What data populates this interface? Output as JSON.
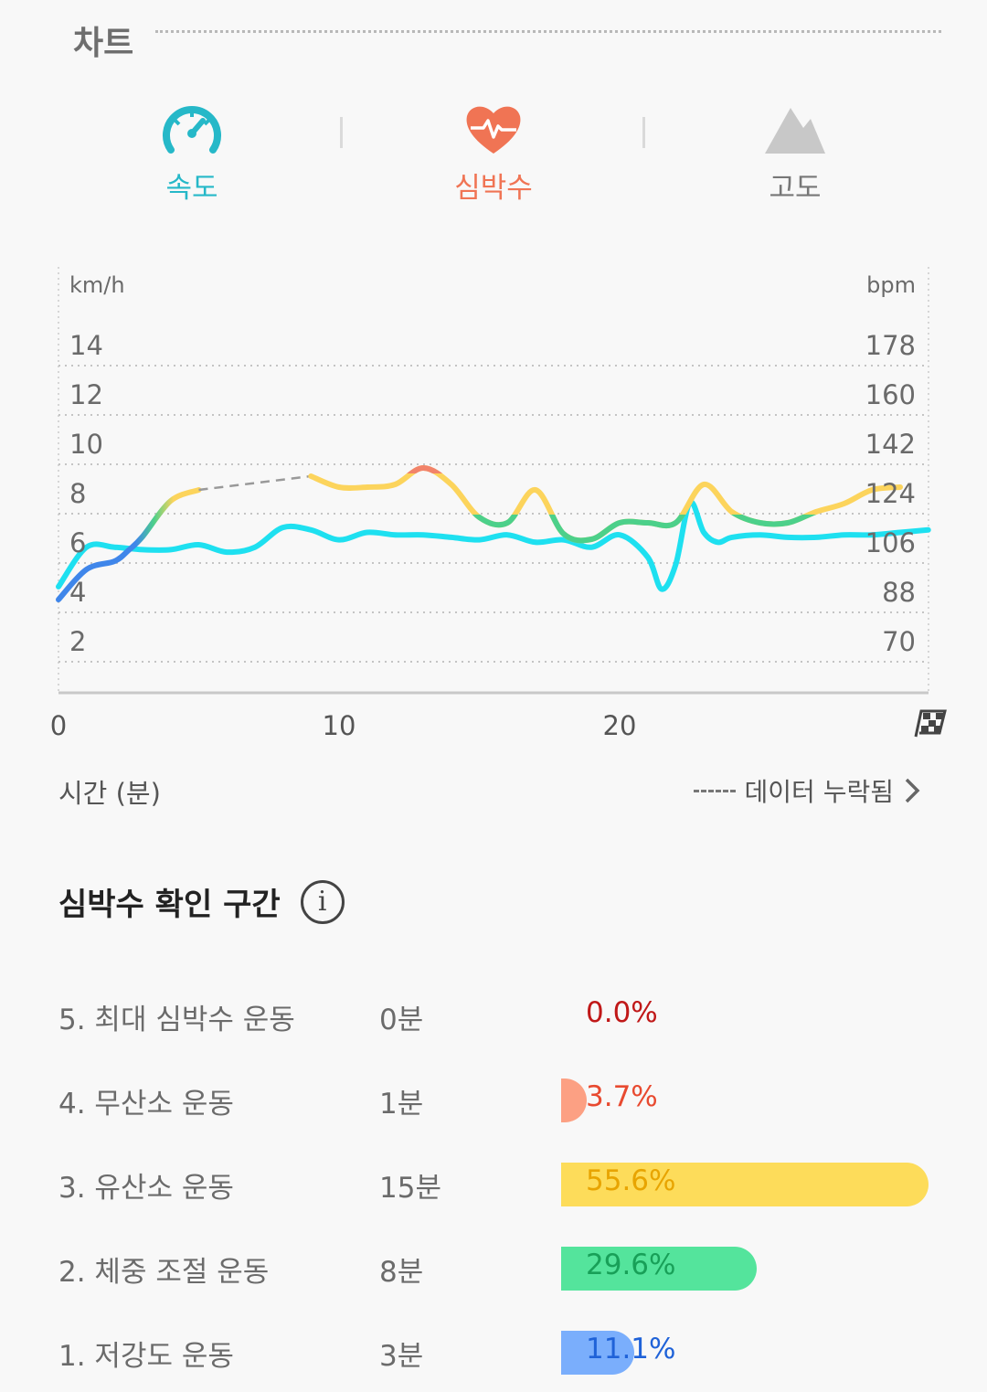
{
  "section": {
    "title": "차트"
  },
  "tabs": [
    {
      "label": "속도",
      "icon": "speedometer-icon",
      "color": "#26b8c8",
      "active": false
    },
    {
      "label": "심박수",
      "icon": "heart-rate-icon",
      "color": "#f07454",
      "active": true
    },
    {
      "label": "고도",
      "icon": "mountain-icon",
      "color": "#888888",
      "active": false
    }
  ],
  "chart_data": {
    "type": "line",
    "left_unit": "km/h",
    "right_unit": "bpm",
    "left_ticks": [
      "14",
      "12",
      "10",
      "8",
      "6",
      "4",
      "2"
    ],
    "right_ticks": [
      "178",
      "160",
      "142",
      "124",
      "106",
      "88",
      "70"
    ],
    "x_ticks": [
      "0",
      "10",
      "20"
    ],
    "xlim": [
      0,
      31
    ],
    "ylim_left": [
      0,
      16
    ],
    "ylim_right": [
      52,
      196
    ],
    "finish_icon": "checkered-flag-icon",
    "series": [
      {
        "name": "속도",
        "axis": "left",
        "color": "#1ee0f0",
        "x": [
          0,
          1,
          2,
          3,
          4,
          5,
          6,
          7,
          8,
          9,
          10,
          11,
          12,
          13,
          14,
          15,
          16,
          17,
          18,
          19,
          20,
          21,
          21.5,
          22,
          22.5,
          23,
          23.5,
          24,
          25,
          26,
          27,
          28,
          29,
          30,
          31
        ],
        "y": [
          4.3,
          5.9,
          5.9,
          5.8,
          5.8,
          6.0,
          5.7,
          5.9,
          6.7,
          6.6,
          6.2,
          6.5,
          6.4,
          6.4,
          6.3,
          6.2,
          6.4,
          6.1,
          6.2,
          5.9,
          6.4,
          5.5,
          4.2,
          5.2,
          7.7,
          6.5,
          6.1,
          6.3,
          6.4,
          6.3,
          6.3,
          6.4,
          6.4,
          6.5,
          6.6
        ]
      },
      {
        "name": "심박수",
        "axis": "right",
        "color": "#fcd45c",
        "x": [
          0,
          1,
          2,
          2.5,
          3,
          4,
          5,
          9,
          10,
          11,
          12,
          13,
          14,
          15,
          16,
          17,
          18,
          19,
          20,
          21,
          22,
          23,
          24,
          25,
          26,
          27,
          28,
          29,
          30
        ],
        "y": [
          86,
          97,
          100,
          104,
          109,
          122,
          126,
          131,
          127,
          127,
          128,
          134,
          128,
          116,
          114,
          126,
          110,
          108,
          114,
          114,
          114,
          128,
          118,
          114,
          114,
          118,
          121,
          126,
          127
        ]
      }
    ],
    "gap": {
      "x": [
        5,
        9
      ],
      "label": "데이터 누락됨"
    }
  },
  "xaxis": {
    "label": "시간 (분)"
  },
  "legend": {
    "missing_label": "데이터 누락됨"
  },
  "zones": {
    "title": "심박수 확인 구간",
    "info_icon": "info-icon",
    "rows": [
      {
        "name": "5. 최대 심박수 운동",
        "minutes": "0분",
        "percent": "0.0%",
        "share": 0.0,
        "bar_color": "#e0202a",
        "text_color": "#c01818"
      },
      {
        "name": "4. 무산소 운동",
        "minutes": "1분",
        "percent": "3.7%",
        "share": 3.7,
        "bar_color": "#fca083",
        "text_color": "#e84a30"
      },
      {
        "name": "3. 유산소 운동",
        "minutes": "15분",
        "percent": "55.6%",
        "share": 55.6,
        "bar_color": "#fddc5a",
        "text_color": "#e8a400"
      },
      {
        "name": "2. 체중 조절 운동",
        "minutes": "8분",
        "percent": "29.6%",
        "share": 29.6,
        "bar_color": "#54e49c",
        "text_color": "#18a058"
      },
      {
        "name": "1. 저강도 운동",
        "minutes": "3분",
        "percent": "11.1%",
        "share": 11.1,
        "bar_color": "#7aaefc",
        "text_color": "#1f62d8"
      }
    ]
  }
}
